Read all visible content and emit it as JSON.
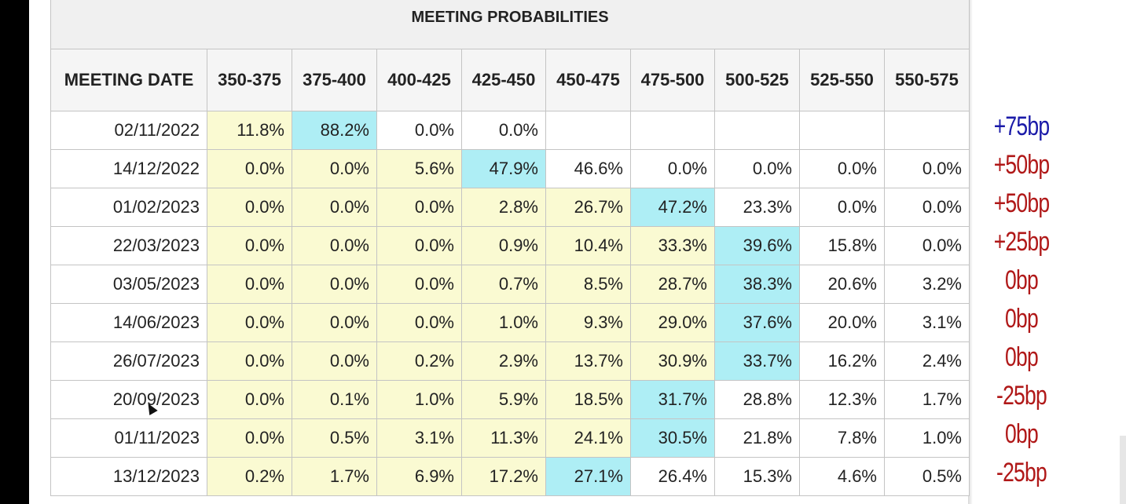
{
  "title": "MEETING PROBABILITIES",
  "columns": [
    "MEETING DATE",
    "350-375",
    "375-400",
    "400-425",
    "425-450",
    "450-475",
    "475-500",
    "500-525",
    "525-550",
    "550-575"
  ],
  "rows": [
    {
      "date": "02/11/2022",
      "cells": [
        "11.8%",
        "88.2%",
        "0.0%",
        "0.0%",
        "",
        "",
        "",
        "",
        ""
      ],
      "shade": [
        "y",
        "b",
        "w",
        "w",
        "w",
        "w",
        "w",
        "w",
        "w"
      ]
    },
    {
      "date": "14/12/2022",
      "cells": [
        "0.0%",
        "0.0%",
        "5.6%",
        "47.9%",
        "46.6%",
        "0.0%",
        "0.0%",
        "0.0%",
        "0.0%"
      ],
      "shade": [
        "y",
        "y",
        "y",
        "b",
        "w",
        "w",
        "w",
        "w",
        "w"
      ]
    },
    {
      "date": "01/02/2023",
      "cells": [
        "0.0%",
        "0.0%",
        "0.0%",
        "2.8%",
        "26.7%",
        "47.2%",
        "23.3%",
        "0.0%",
        "0.0%"
      ],
      "shade": [
        "y",
        "y",
        "y",
        "y",
        "y",
        "b",
        "w",
        "w",
        "w"
      ]
    },
    {
      "date": "22/03/2023",
      "cells": [
        "0.0%",
        "0.0%",
        "0.0%",
        "0.9%",
        "10.4%",
        "33.3%",
        "39.6%",
        "15.8%",
        "0.0%"
      ],
      "shade": [
        "y",
        "y",
        "y",
        "y",
        "y",
        "y",
        "b",
        "w",
        "w"
      ]
    },
    {
      "date": "03/05/2023",
      "cells": [
        "0.0%",
        "0.0%",
        "0.0%",
        "0.7%",
        "8.5%",
        "28.7%",
        "38.3%",
        "20.6%",
        "3.2%"
      ],
      "shade": [
        "y",
        "y",
        "y",
        "y",
        "y",
        "y",
        "b",
        "w",
        "w"
      ]
    },
    {
      "date": "14/06/2023",
      "cells": [
        "0.0%",
        "0.0%",
        "0.0%",
        "1.0%",
        "9.3%",
        "29.0%",
        "37.6%",
        "20.0%",
        "3.1%"
      ],
      "shade": [
        "y",
        "y",
        "y",
        "y",
        "y",
        "y",
        "b",
        "w",
        "w"
      ]
    },
    {
      "date": "26/07/2023",
      "cells": [
        "0.0%",
        "0.0%",
        "0.2%",
        "2.9%",
        "13.7%",
        "30.9%",
        "33.7%",
        "16.2%",
        "2.4%"
      ],
      "shade": [
        "y",
        "y",
        "y",
        "y",
        "y",
        "y",
        "b",
        "w",
        "w"
      ]
    },
    {
      "date": "20/09/2023",
      "cells": [
        "0.0%",
        "0.1%",
        "1.0%",
        "5.9%",
        "18.5%",
        "31.7%",
        "28.8%",
        "12.3%",
        "1.7%"
      ],
      "shade": [
        "y",
        "y",
        "y",
        "y",
        "y",
        "b",
        "w",
        "w",
        "w"
      ]
    },
    {
      "date": "01/11/2023",
      "cells": [
        "0.0%",
        "0.5%",
        "3.1%",
        "11.3%",
        "24.1%",
        "30.5%",
        "21.8%",
        "7.8%",
        "1.0%"
      ],
      "shade": [
        "y",
        "y",
        "y",
        "y",
        "y",
        "b",
        "w",
        "w",
        "w"
      ]
    },
    {
      "date": "13/12/2023",
      "cells": [
        "0.2%",
        "1.7%",
        "6.9%",
        "17.2%",
        "27.1%",
        "26.4%",
        "15.3%",
        "4.6%",
        "0.5%"
      ],
      "shade": [
        "y",
        "y",
        "y",
        "y",
        "b",
        "w",
        "w",
        "w",
        "w"
      ]
    }
  ],
  "changes": [
    {
      "text": "+75bp",
      "color": "#1a1aa8"
    },
    {
      "text": "+50bp",
      "color": "#b01818"
    },
    {
      "text": "+50bp",
      "color": "#b01818"
    },
    {
      "text": "+25bp",
      "color": "#b01818"
    },
    {
      "text": "0bp",
      "color": "#b01818"
    },
    {
      "text": "0bp",
      "color": "#b01818"
    },
    {
      "text": "0bp",
      "color": "#b01818"
    },
    {
      "text": "-25bp",
      "color": "#b01818"
    },
    {
      "text": "0bp",
      "color": "#b01818"
    },
    {
      "text": "-25bp",
      "color": "#b01818"
    }
  ],
  "colors": {
    "yellow": "#fafad2",
    "blue": "#aeeef5"
  }
}
